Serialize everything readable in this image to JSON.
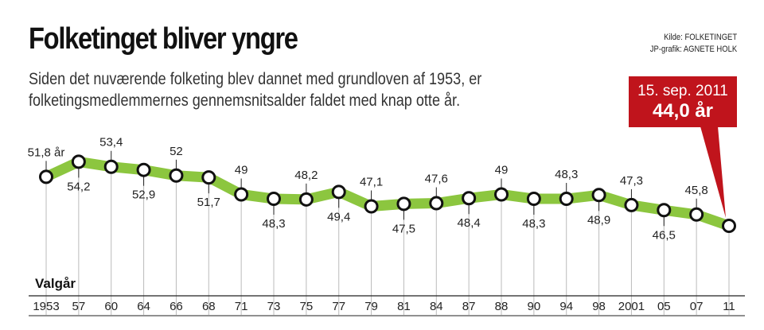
{
  "header": {
    "title": "Folketinget bliver yngre",
    "subtitle_line1": "Siden det nuværende folketing blev dannet med grundloven af 1953, er",
    "subtitle_line2": "folketingsmedlemmernes gennemsnitsalder faldet med knap otte år.",
    "source_line1": "Kilde: FOLKETINGET",
    "source_line2": "JP-grafik: AGNETE HOLK"
  },
  "callout": {
    "date": "15. sep. 2011",
    "value": "44,0 år"
  },
  "colors": {
    "line": "#8cc63f",
    "callout": "#c0141c",
    "marker_stroke": "#111111"
  },
  "chart_data": {
    "type": "line",
    "xlabel": "Valgår",
    "ylabel": "",
    "categories": [
      "1953",
      "57",
      "60",
      "64",
      "66",
      "68",
      "71",
      "73",
      "75",
      "77",
      "79",
      "81",
      "84",
      "87",
      "88",
      "90",
      "94",
      "98",
      "2001",
      "05",
      "07",
      "11"
    ],
    "values": [
      51.8,
      54.2,
      53.4,
      52.9,
      52,
      51.7,
      49,
      48.3,
      48.2,
      49.4,
      47.1,
      47.5,
      47.6,
      48.4,
      49,
      48.3,
      48.3,
      48.9,
      47.3,
      46.5,
      45.8,
      44.0
    ],
    "value_labels": [
      "51,8 år",
      "54,2",
      "53,4",
      "52,9",
      "52",
      "51,7",
      "49",
      "48,3",
      "48,2",
      "49,4",
      "47,1",
      "47,5",
      "47,6",
      "48,4",
      "49",
      "48,3",
      "48,3",
      "48,9",
      "47,3",
      "46,5",
      "45,8",
      ""
    ],
    "label_side": [
      "up",
      "down",
      "up",
      "down",
      "up",
      "down",
      "up",
      "down",
      "up",
      "down",
      "up",
      "down",
      "up",
      "down",
      "up",
      "down",
      "up",
      "down",
      "up",
      "down",
      "up",
      "none"
    ]
  }
}
